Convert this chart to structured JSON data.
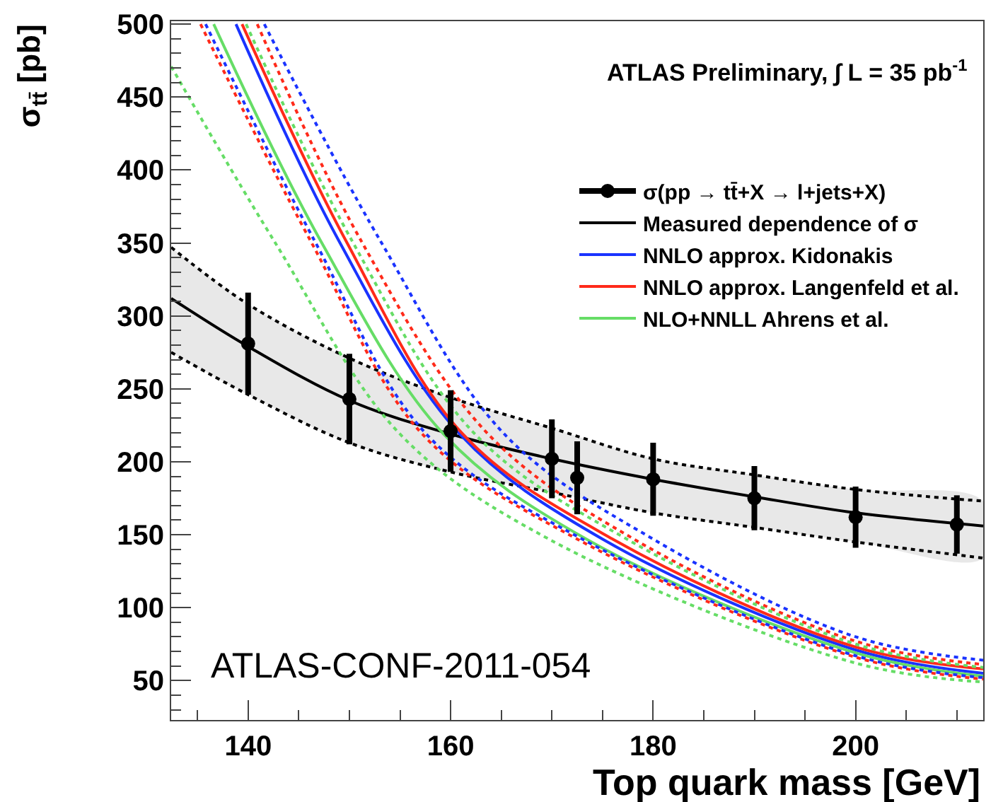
{
  "chart_data": {
    "type": "line",
    "ylabel": "σ$_{tt̄}$ [pb]",
    "xlabel": "Top quark mass [GeV]",
    "annotations": [
      "ATLAS Preliminary, ∫ L = 35 pb$^{-1}$",
      "ATLAS-CONF-2011-054"
    ],
    "xlim": [
      132.4,
      212.6
    ],
    "xticks": [
      140,
      160,
      180,
      200
    ],
    "ylim": [
      23,
      502
    ],
    "yticks": [
      50,
      100,
      150,
      200,
      250,
      300,
      350,
      400,
      450,
      500
    ],
    "grid": false,
    "legend": "top right",
    "series": [
      {
        "type": "scatter",
        "name": "σ(pp → tt̄+X → l+jets+X)",
        "color": "#000000",
        "marker": "circle",
        "x": [
          140,
          150,
          160,
          170,
          172.5,
          180,
          190,
          200,
          210
        ],
        "values": [
          281,
          243,
          221,
          202,
          189,
          188,
          175,
          162,
          157
        ],
        "errors": [
          35,
          31,
          28,
          27,
          25,
          25,
          22,
          21,
          20
        ]
      },
      {
        "type": "line",
        "name": "Measured dependence of σ",
        "color": "#000000",
        "line_style": "solid",
        "x": [
          132.4,
          140,
          150,
          160,
          170,
          180,
          190,
          200,
          212.6
        ],
        "values": [
          312,
          279,
          242,
          219,
          202,
          188,
          176,
          165,
          156
        ],
        "lower": [
          275,
          246,
          213,
          193,
          179,
          165,
          155,
          145,
          134
        ],
        "upper": [
          347,
          308,
          271,
          244,
          223,
          202,
          191,
          181,
          173
        ]
      },
      {
        "type": "line",
        "color": "#000000",
        "line_style": "dotted",
        "x": [
          132.4,
          140,
          150,
          160,
          170,
          180,
          190,
          200,
          212.6
        ],
        "values": [
          347,
          308,
          271,
          244,
          223,
          202,
          191,
          181,
          173
        ]
      },
      {
        "type": "line",
        "color": "#000000",
        "line_style": "dotted",
        "x": [
          132.4,
          140,
          150,
          160,
          170,
          180,
          190,
          200,
          212.6
        ],
        "values": [
          275,
          246,
          213,
          193,
          179,
          165,
          155,
          145,
          134
        ]
      },
      {
        "type": "line",
        "name": "NNLO approx. Kidonakis",
        "color": "#1a33ff",
        "line_style": "solid",
        "x": [
          138.8,
          149.0,
          160.9,
          175.0,
          200,
          212.6
        ],
        "values": [
          500,
          351,
          219,
          147,
          71,
          55
        ]
      },
      {
        "type": "line",
        "name": "NNLO approx. Langenfeld et al.",
        "color": "#ff2a1a",
        "line_style": "solid",
        "x": [
          139.4,
          149.7,
          161.2,
          176.0,
          200,
          212.6
        ],
        "values": [
          500,
          351,
          219,
          147,
          73,
          58
        ]
      },
      {
        "type": "line",
        "name": "NLO+NNLL Ahrens et al.",
        "color": "#66dd66",
        "line_style": "solid",
        "x": [
          136.6,
          147.2,
          159.3,
          173.4,
          200,
          212.6
        ],
        "values": [
          500,
          351,
          219,
          147,
          69,
          53
        ]
      },
      {
        "type": "line",
        "color": "#1a33ff",
        "line_style": "dotted",
        "x": [
          135.8,
          146.6,
          157.6,
          173.0,
          200,
          212.6
        ],
        "values": [
          500,
          351,
          219,
          147,
          67,
          52
        ]
      },
      {
        "type": "line",
        "color": "#1a33ff",
        "line_style": "dotted",
        "x": [
          141.6,
          153.1,
          165.3,
          180.0,
          200,
          212.6
        ],
        "values": [
          500,
          351,
          219,
          147,
          80,
          64
        ]
      },
      {
        "type": "line",
        "color": "#ff2a1a",
        "line_style": "dotted",
        "x": [
          135.3,
          146.2,
          157.2,
          172.5,
          200,
          212.6
        ],
        "values": [
          500,
          351,
          219,
          147,
          66,
          51
        ]
      },
      {
        "type": "line",
        "color": "#ff2a1a",
        "line_style": "dotted",
        "x": [
          140.9,
          151.2,
          163.7,
          178.1,
          200,
          212.6
        ],
        "values": [
          500,
          351,
          219,
          147,
          77,
          61
        ]
      },
      {
        "type": "line",
        "color": "#66dd66",
        "line_style": "dotted",
        "x": [
          132.4,
          142.6,
          155.0,
          169.7,
          200,
          212.6
        ],
        "values": [
          471,
          351,
          219,
          147,
          62,
          49
        ]
      },
      {
        "type": "line",
        "color": "#66dd66",
        "line_style": "dotted",
        "x": [
          139.8,
          150.3,
          162.4,
          177.4,
          200,
          212.6
        ],
        "values": [
          500,
          351,
          219,
          147,
          75,
          59
        ]
      }
    ]
  }
}
